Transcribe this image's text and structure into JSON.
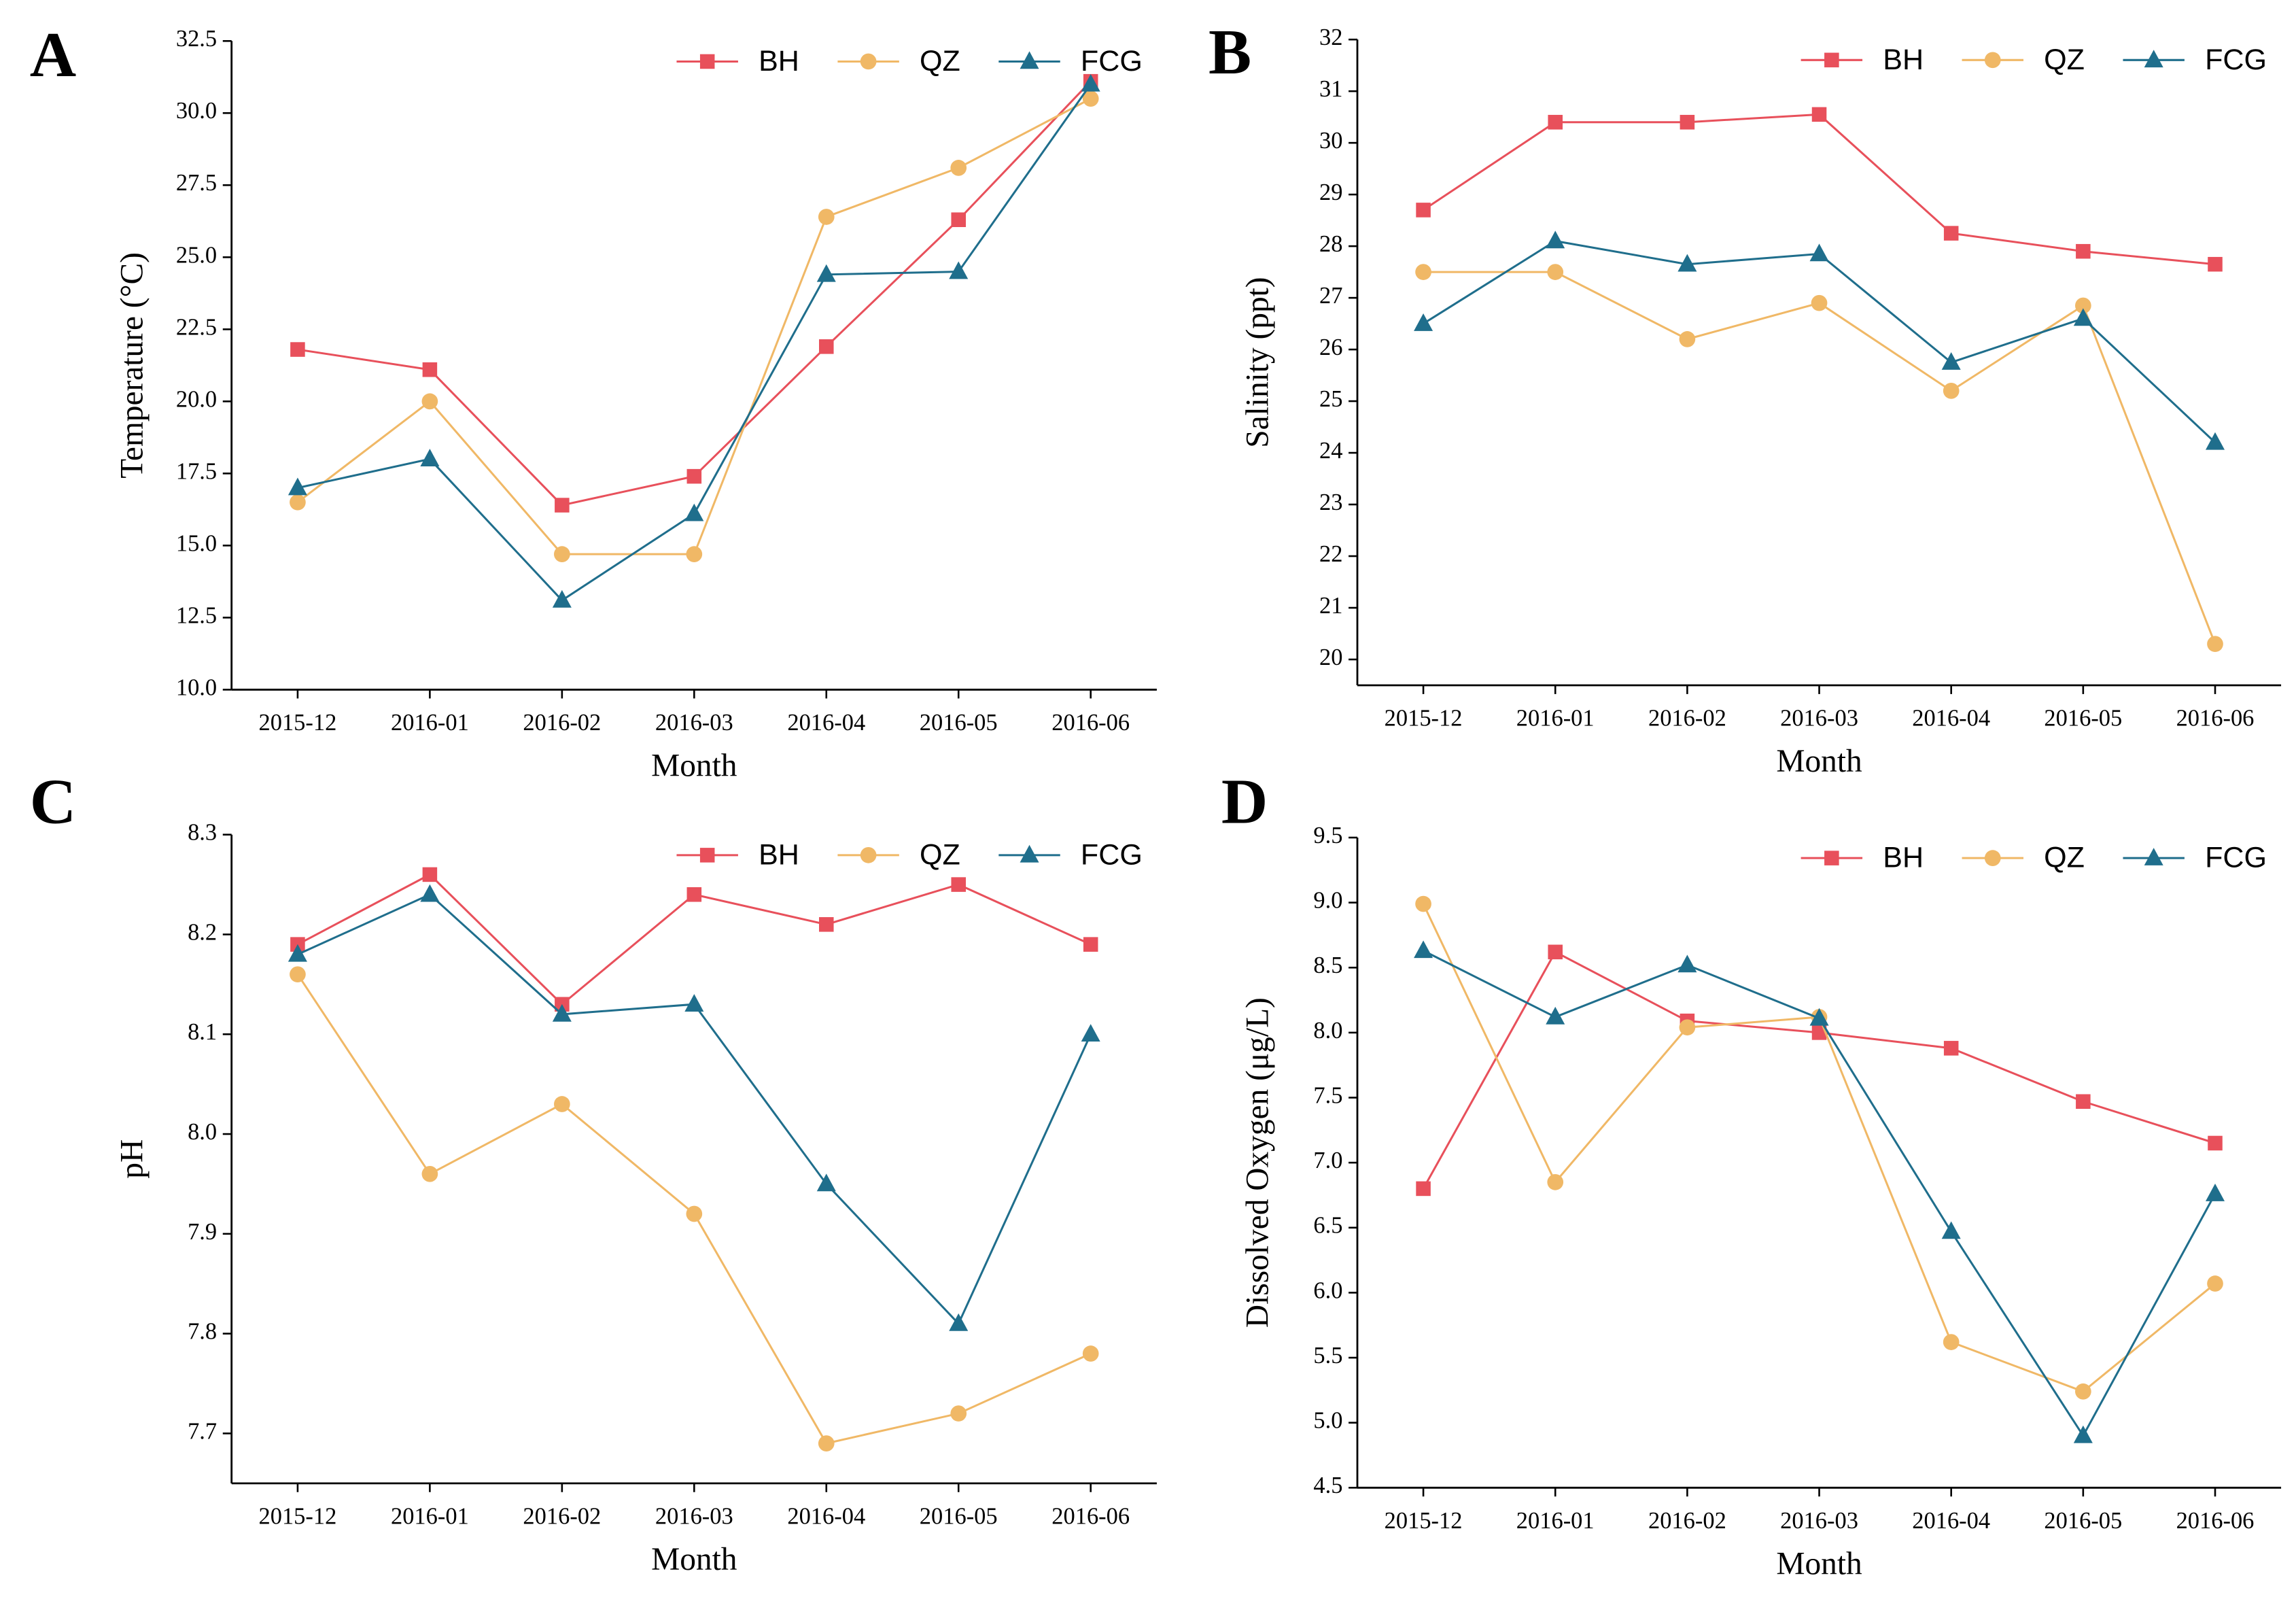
{
  "chart_data": [
    {
      "type": "line",
      "panel_label": "A",
      "y_label": "Temperature (°C)",
      "x_label": "Month",
      "categories": [
        "2015-12",
        "2016-01",
        "2016-02",
        "2016-03",
        "2016-04",
        "2016-05",
        "2016-06"
      ],
      "ylim": [
        10,
        32.5
      ],
      "yticks": [
        {
          "value": 10,
          "label": "10.0"
        },
        12.5,
        {
          "value": 15,
          "label": "15.0"
        },
        17.5,
        {
          "value": 20,
          "label": "20.0"
        },
        22.5,
        {
          "value": 25,
          "label": "25.0"
        },
        27.5,
        {
          "value": 30,
          "label": "30.0"
        },
        32.5
      ],
      "series": [
        {
          "name": "BH",
          "color": "#e8505b",
          "marker": "square",
          "values": [
            21.8,
            21.1,
            16.4,
            17.4,
            21.9,
            26.3,
            31.1
          ]
        },
        {
          "name": "QZ",
          "color": "#f0b866",
          "marker": "circle",
          "values": [
            16.5,
            20.0,
            14.7,
            14.7,
            26.4,
            28.1,
            30.5
          ]
        },
        {
          "name": "FCG",
          "color": "#1f6e8c",
          "marker": "triangle",
          "values": [
            17.0,
            18.0,
            13.1,
            16.1,
            24.4,
            24.5,
            31.0
          ]
        }
      ]
    },
    {
      "type": "line",
      "panel_label": "B",
      "y_label": "Salinity (ppt)",
      "x_label": "Month",
      "categories": [
        "2015-12",
        "2016-01",
        "2016-02",
        "2016-03",
        "2016-04",
        "2016-05",
        "2016-06"
      ],
      "ylim": [
        19.5,
        32
      ],
      "yticks": [
        20,
        21,
        22,
        23,
        24,
        25,
        26,
        27,
        28,
        29,
        30,
        31,
        32
      ],
      "series": [
        {
          "name": "BH",
          "color": "#e8505b",
          "marker": "square",
          "values": [
            28.7,
            30.4,
            30.4,
            30.55,
            28.25,
            27.9,
            27.65
          ]
        },
        {
          "name": "QZ",
          "color": "#f0b866",
          "marker": "circle",
          "values": [
            27.5,
            27.5,
            26.2,
            26.9,
            25.2,
            26.85,
            20.3
          ]
        },
        {
          "name": "FCG",
          "color": "#1f6e8c",
          "marker": "triangle",
          "values": [
            26.5,
            28.1,
            27.65,
            27.85,
            25.75,
            26.6,
            24.2
          ]
        }
      ]
    },
    {
      "type": "line",
      "panel_label": "C",
      "y_label": "pH",
      "x_label": "Month",
      "categories": [
        "2015-12",
        "2016-01",
        "2016-02",
        "2016-03",
        "2016-04",
        "2016-05",
        "2016-06"
      ],
      "ylim": [
        7.65,
        8.3
      ],
      "yticks": [
        7.7,
        7.8,
        7.9,
        {
          "value": 8,
          "label": "8.0"
        },
        8.1,
        8.2,
        8.3
      ],
      "series": [
        {
          "name": "BH",
          "color": "#e8505b",
          "marker": "square",
          "values": [
            8.19,
            8.26,
            8.13,
            8.24,
            8.21,
            8.25,
            8.19
          ]
        },
        {
          "name": "QZ",
          "color": "#f0b866",
          "marker": "circle",
          "values": [
            8.16,
            7.96,
            8.03,
            7.92,
            7.69,
            7.72,
            7.78
          ]
        },
        {
          "name": "FCG",
          "color": "#1f6e8c",
          "marker": "triangle",
          "values": [
            8.18,
            8.24,
            8.12,
            8.13,
            7.95,
            7.81,
            8.1
          ]
        }
      ]
    },
    {
      "type": "line",
      "panel_label": "D",
      "y_label": "Dissolved Oxygen (μg/L)",
      "x_label": "Month",
      "categories": [
        "2015-12",
        "2016-01",
        "2016-02",
        "2016-03",
        "2016-04",
        "2016-05",
        "2016-06"
      ],
      "ylim": [
        4.5,
        9.5
      ],
      "yticks": [
        4.5,
        {
          "value": 5,
          "label": "5.0"
        },
        5.5,
        {
          "value": 6,
          "label": "6.0"
        },
        6.5,
        {
          "value": 7,
          "label": "7.0"
        },
        7.5,
        {
          "value": 8,
          "label": "8.0"
        },
        8.5,
        {
          "value": 9,
          "label": "9.0"
        },
        9.5
      ],
      "series": [
        {
          "name": "BH",
          "color": "#e8505b",
          "marker": "square",
          "values": [
            6.8,
            8.62,
            8.09,
            8.0,
            7.88,
            7.47,
            7.15
          ]
        },
        {
          "name": "QZ",
          "color": "#f0b866",
          "marker": "circle",
          "values": [
            8.99,
            6.85,
            8.04,
            8.12,
            5.62,
            5.24,
            6.07
          ]
        },
        {
          "name": "FCG",
          "color": "#1f6e8c",
          "marker": "triangle",
          "values": [
            8.63,
            8.12,
            8.52,
            8.11,
            6.47,
            4.9,
            6.76
          ]
        }
      ]
    }
  ]
}
